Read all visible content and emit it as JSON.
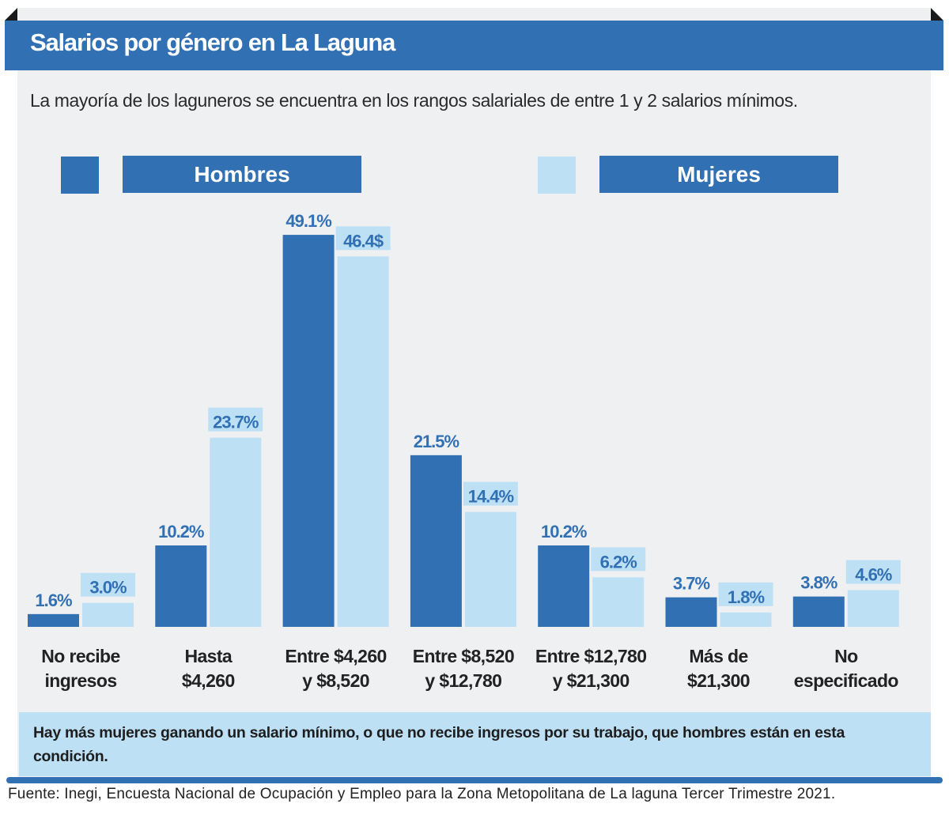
{
  "header": {
    "title": "Salarios por género en La Laguna",
    "subtitle": "La mayoría de los laguneros se encuentra en los rangos salariales de entre 1 y 2 salarios mínimos."
  },
  "legend": [
    {
      "label": "Hombres",
      "color": "#3270b4"
    },
    {
      "label": "Mujeres",
      "color": "#bde0f5"
    }
  ],
  "note": "Hay más mujeres ganando un salario mínimo, o que no recibe ingresos por su trabajo, que hombres están en esta condición.",
  "source": "Fuente: Inegi, Encuesta Nacional de Ocupación y Empleo para la Zona Metopolitana de La laguna Tercer Trimestre 2021.",
  "colors": {
    "accent": "#3270b4",
    "light": "#bde0f5",
    "label_text": "#3270b4",
    "background": "#eff0f2"
  },
  "chart_data": {
    "type": "bar",
    "title": "Salarios por género en La Laguna",
    "xlabel": "",
    "ylabel": "",
    "ylim": [
      0,
      50
    ],
    "grid": false,
    "legend_position": "top",
    "categories": [
      [
        "No recibe",
        "ingresos"
      ],
      [
        "Hasta",
        "$4,260"
      ],
      [
        "Entre $4,260",
        "y $8,520"
      ],
      [
        "Entre $8,520",
        "y $12,780"
      ],
      [
        "Entre $12,780",
        "y $21,300"
      ],
      [
        "Más de",
        "$21,300"
      ],
      [
        "No",
        "especificado"
      ]
    ],
    "series": [
      {
        "name": "Hombres",
        "values": [
          1.6,
          10.2,
          49.1,
          21.5,
          10.2,
          3.7,
          3.8
        ],
        "labels": [
          "1.6%",
          "10.2%",
          "49.1%",
          "21.5%",
          "10.2%",
          "3.7%",
          "3.8%"
        ]
      },
      {
        "name": "Mujeres",
        "values": [
          3.0,
          23.7,
          46.4,
          14.4,
          6.2,
          1.8,
          4.6
        ],
        "labels": [
          "3.0%",
          "23.7%",
          "46.4$",
          "14.4%",
          "6.2%",
          "1.8%",
          "4.6%"
        ]
      }
    ]
  }
}
